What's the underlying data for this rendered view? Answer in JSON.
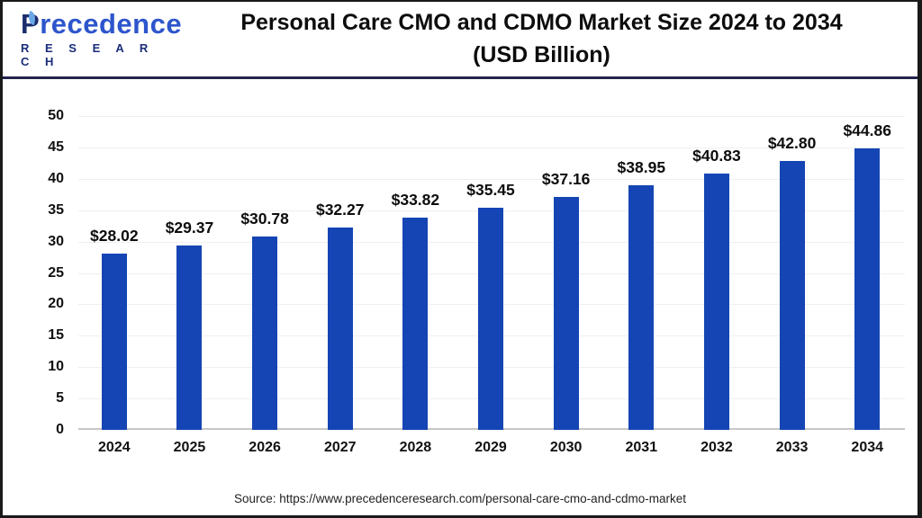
{
  "header": {
    "logo_line1_initial": "P",
    "logo_line1_rest": "recedence",
    "logo_line2": "R E S E A R C H",
    "title_line1": "Personal Care CMO and CDMO Market Size 2024 to 2034",
    "title_line2": "(USD Billion)"
  },
  "chart_data": {
    "type": "bar",
    "title": "Personal Care CMO and CDMO Market Size 2024 to 2034 (USD Billion)",
    "categories": [
      "2024",
      "2025",
      "2026",
      "2027",
      "2028",
      "2029",
      "2030",
      "2031",
      "2032",
      "2033",
      "2034"
    ],
    "values": [
      28.02,
      29.37,
      30.78,
      32.27,
      33.82,
      35.45,
      37.16,
      38.95,
      40.83,
      42.8,
      44.86
    ],
    "value_labels": [
      "$28.02",
      "$29.37",
      "$30.78",
      "$32.27",
      "$33.82",
      "$35.45",
      "$37.16",
      "$38.95",
      "$40.83",
      "$42.80",
      "$44.86"
    ],
    "xlabel": "",
    "ylabel": "",
    "ylim": [
      0,
      50
    ],
    "yticks": [
      0,
      5,
      10,
      15,
      20,
      25,
      30,
      35,
      40,
      45,
      50
    ],
    "grid": true,
    "legend": false,
    "bar_color": "#1545b4",
    "grid_color": "#efefef",
    "axis_line_color": "#c7c7c7"
  },
  "footer": {
    "source": "Source: https://www.precedenceresearch.com/personal-care-cmo-and-cdmo-market"
  }
}
